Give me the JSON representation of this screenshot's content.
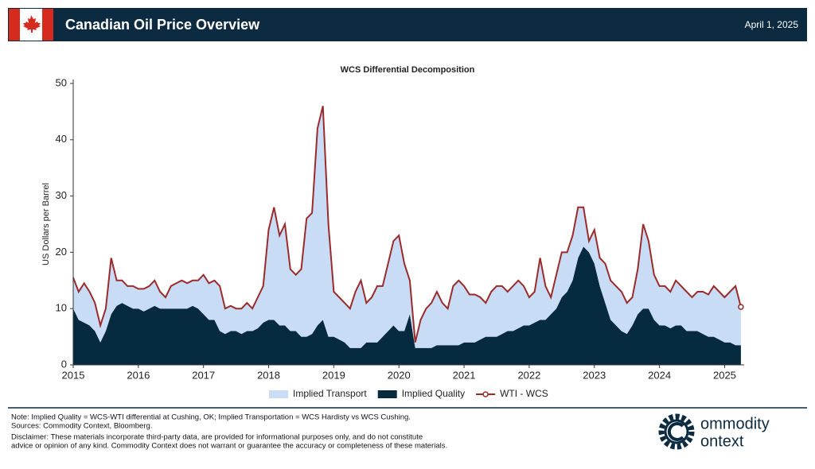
{
  "header": {
    "title": "Canadian Oil Price Overview",
    "date": "April 1, 2025"
  },
  "chart_data": {
    "type": "area",
    "title": "WCS Differential Decomposition",
    "ylabel": "US Dollars per Barrel",
    "x": [
      2015,
      2015.083,
      2015.167,
      2015.25,
      2015.333,
      2015.417,
      2015.5,
      2015.583,
      2015.667,
      2015.75,
      2015.833,
      2015.917,
      2016,
      2016.083,
      2016.167,
      2016.25,
      2016.333,
      2016.417,
      2016.5,
      2016.583,
      2016.667,
      2016.75,
      2016.833,
      2016.917,
      2017,
      2017.083,
      2017.167,
      2017.25,
      2017.333,
      2017.417,
      2017.5,
      2017.583,
      2017.667,
      2017.75,
      2017.833,
      2017.917,
      2018,
      2018.083,
      2018.167,
      2018.25,
      2018.333,
      2018.417,
      2018.5,
      2018.583,
      2018.667,
      2018.75,
      2018.833,
      2018.917,
      2019,
      2019.083,
      2019.167,
      2019.25,
      2019.333,
      2019.417,
      2019.5,
      2019.583,
      2019.667,
      2019.75,
      2019.833,
      2019.917,
      2020,
      2020.083,
      2020.167,
      2020.25,
      2020.333,
      2020.417,
      2020.5,
      2020.583,
      2020.667,
      2020.75,
      2020.833,
      2020.917,
      2021,
      2021.083,
      2021.167,
      2021.25,
      2021.333,
      2021.417,
      2021.5,
      2021.583,
      2021.667,
      2021.75,
      2021.833,
      2021.917,
      2022,
      2022.083,
      2022.167,
      2022.25,
      2022.333,
      2022.417,
      2022.5,
      2022.583,
      2022.667,
      2022.75,
      2022.833,
      2022.917,
      2023,
      2023.083,
      2023.167,
      2023.25,
      2023.333,
      2023.417,
      2023.5,
      2023.583,
      2023.667,
      2023.75,
      2023.833,
      2023.917,
      2024,
      2024.083,
      2024.167,
      2024.25,
      2024.333,
      2024.417,
      2024.5,
      2024.583,
      2024.667,
      2024.75,
      2024.833,
      2024.917,
      2025,
      2025.083,
      2025.167,
      2025.25
    ],
    "series": [
      {
        "name": "Implied Transport",
        "type": "area",
        "color": "#c9dcf6",
        "values": [
          5.5,
          5,
          7,
          6,
          5,
          3,
          4,
          10,
          4.5,
          4,
          3.5,
          4,
          3.5,
          4,
          4,
          4.5,
          3,
          2,
          4,
          4.5,
          5,
          4.5,
          4.5,
          5,
          7,
          6.5,
          7,
          8,
          4.5,
          4.5,
          4,
          4.5,
          5,
          4,
          5.5,
          6.5,
          16,
          20,
          16,
          18,
          11,
          10,
          12,
          21,
          21.5,
          35,
          38,
          20,
          8,
          7.5,
          7,
          7,
          10,
          12,
          7,
          8,
          10,
          9,
          12,
          15,
          17,
          12,
          6,
          1,
          5,
          7,
          8,
          9.5,
          7.5,
          6.5,
          10.5,
          11.5,
          10,
          8.5,
          8.5,
          7.5,
          6,
          8,
          9,
          8.5,
          7,
          8,
          8.5,
          7,
          5,
          5.5,
          11,
          6,
          3,
          6,
          8,
          7,
          8,
          9,
          7,
          2,
          6,
          5,
          7,
          7,
          7,
          7,
          5.5,
          5,
          8,
          15,
          12,
          8,
          7,
          7,
          6.5,
          8,
          7,
          7,
          6,
          7,
          7.5,
          7.5,
          9,
          8.5,
          8,
          9,
          10.5,
          6.8
        ]
      },
      {
        "name": "Implied Quality",
        "type": "area",
        "color": "#062a3e",
        "values": [
          10,
          8,
          7.5,
          7,
          6,
          4,
          6,
          9,
          10.5,
          11,
          10.5,
          10,
          10,
          9.5,
          10,
          10.5,
          10,
          10,
          10,
          10,
          10,
          10,
          10.5,
          10,
          9,
          8,
          8,
          6,
          5.5,
          6,
          6,
          5.5,
          6,
          6,
          6.5,
          7.5,
          8,
          8,
          7,
          7,
          6,
          6,
          5,
          5,
          5.5,
          7,
          8,
          5,
          5,
          4.5,
          4,
          3,
          3,
          3,
          4,
          4,
          4,
          5,
          6,
          7,
          6,
          6,
          9,
          3,
          3,
          3,
          3,
          3.5,
          3.5,
          3.5,
          3.5,
          3.5,
          4,
          4,
          4,
          4.5,
          5,
          5,
          5,
          5.5,
          6,
          6,
          6.5,
          7,
          7,
          7.5,
          8,
          8,
          9,
          10,
          12,
          13,
          15,
          19,
          21,
          20,
          18,
          14,
          11,
          8,
          7,
          6,
          5.5,
          7,
          9,
          10,
          10,
          8,
          7,
          7,
          6.5,
          7,
          7,
          6,
          6,
          6,
          5.5,
          5,
          5,
          4.5,
          4,
          4,
          3.5,
          3.5
        ]
      },
      {
        "name": "WTI - WCS",
        "type": "line",
        "color": "#9b2b2b",
        "values": [
          15.5,
          13,
          14.5,
          13,
          11,
          7,
          10,
          19,
          15,
          15,
          14,
          14,
          13.5,
          13.5,
          14,
          15,
          13,
          12,
          14,
          14.5,
          15,
          14.5,
          15,
          15,
          16,
          14.5,
          15,
          14,
          10,
          10.5,
          10,
          10,
          11,
          10,
          12,
          14,
          24,
          28,
          23,
          25,
          17,
          16,
          17,
          26,
          27,
          42,
          46,
          25,
          13,
          12,
          11,
          10,
          13,
          15,
          11,
          12,
          14,
          14,
          18,
          22,
          23,
          18,
          15,
          4,
          8,
          10,
          11,
          13,
          11,
          10,
          14,
          15,
          14,
          12.5,
          12.5,
          12,
          11,
          13,
          14,
          14,
          13,
          14,
          15,
          14,
          12,
          13,
          19,
          14,
          12,
          16,
          20,
          20,
          23,
          28,
          28,
          22,
          24,
          19,
          18,
          15,
          14,
          13,
          11,
          12,
          17,
          25,
          22,
          16,
          14,
          14,
          13,
          15,
          14,
          13,
          12,
          13,
          13,
          12.5,
          14,
          13,
          12,
          13,
          14,
          10.3
        ]
      }
    ],
    "xlim": [
      2015,
      2025.3
    ],
    "xticks": [
      2015,
      2016,
      2017,
      2018,
      2019,
      2020,
      2021,
      2022,
      2023,
      2024,
      2025
    ],
    "ylim": [
      0,
      50
    ],
    "yticks": [
      0,
      10,
      20,
      30,
      40,
      50
    ],
    "legend": "bottom"
  },
  "footer": {
    "notes": [
      "Note: Implied Quality = WCS-WTI differential at Cushing, OK; Implied Transportation = WCS Hardisty vs WCS Cushing.",
      "Sources: Commodity Context, Bloomberg.",
      "Disclaimer: These materials incorporate third-party data, are provided for informational purposes only, and do not constitute",
      "advice or opinion of any kind. Commodity Context does not warrant or guarantee the accuracy or completeness of these materials."
    ],
    "logo": [
      "ommodity",
      "ontext"
    ]
  }
}
